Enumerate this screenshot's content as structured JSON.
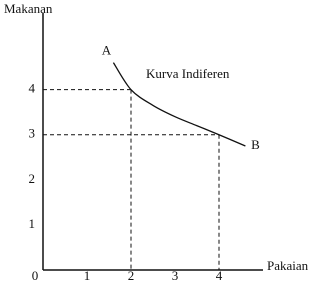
{
  "chart_data": {
    "type": "line",
    "x_label": "Pakaian",
    "y_label": "Makanan",
    "annotation": "Kurva Indiferen",
    "point_labels": [
      "A",
      "B"
    ],
    "x": [
      1.6,
      2,
      2.5,
      3,
      3.5,
      4,
      4.6
    ],
    "series": [
      {
        "color": "#111111",
        "values": [
          4.6,
          4,
          3.65,
          3.4,
          3.2,
          3,
          2.75
        ]
      }
    ],
    "reference_points": [
      {
        "x": 2,
        "y": 4
      },
      {
        "x": 4,
        "y": 3
      }
    ],
    "xlim": [
      0,
      5
    ],
    "ylim": [
      0,
      5.7
    ],
    "xticks": [
      0,
      1,
      2,
      3,
      4
    ],
    "yticks": [
      1,
      2,
      3,
      4
    ]
  }
}
